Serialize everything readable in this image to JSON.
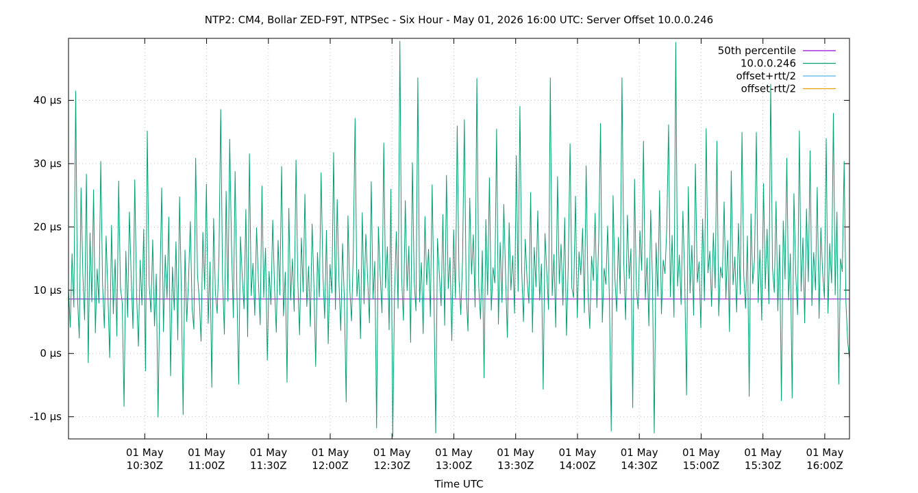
{
  "chart_data": {
    "type": "line",
    "title": "NTP2: CM4, Bollar ZED-F9T, NTPSec - Six Hour - May 01, 2026 16:00 UTC: Server Offset 10.0.0.246",
    "xlabel": "Time UTC",
    "ylabel": "",
    "x_range": [
      "2026-05-01T09:53Z",
      "2026-05-01T16:12Z"
    ],
    "ylim": [
      -13.5,
      49.8
    ],
    "y_unit": "µs",
    "grid": true,
    "legend_position": "top-right",
    "y_ticks": [
      {
        "value": -10,
        "label": "-10 µs"
      },
      {
        "value": 0,
        "label": "0 µs"
      },
      {
        "value": 10,
        "label": "10 µs"
      },
      {
        "value": 20,
        "label": "20 µs"
      },
      {
        "value": 30,
        "label": "30 µs"
      },
      {
        "value": 40,
        "label": "40 µs"
      }
    ],
    "x_ticks": [
      {
        "value": "2026-05-01T10:30Z",
        "date": "01 May",
        "time": "10:30Z"
      },
      {
        "value": "2026-05-01T11:00Z",
        "date": "01 May",
        "time": "11:00Z"
      },
      {
        "value": "2026-05-01T11:30Z",
        "date": "01 May",
        "time": "11:30Z"
      },
      {
        "value": "2026-05-01T12:00Z",
        "date": "01 May",
        "time": "12:00Z"
      },
      {
        "value": "2026-05-01T12:30Z",
        "date": "01 May",
        "time": "12:30Z"
      },
      {
        "value": "2026-05-01T13:00Z",
        "date": "01 May",
        "time": "13:00Z"
      },
      {
        "value": "2026-05-01T13:30Z",
        "date": "01 May",
        "time": "13:30Z"
      },
      {
        "value": "2026-05-01T14:00Z",
        "date": "01 May",
        "time": "14:00Z"
      },
      {
        "value": "2026-05-01T14:30Z",
        "date": "01 May",
        "time": "14:30Z"
      },
      {
        "value": "2026-05-01T15:00Z",
        "date": "01 May",
        "time": "15:00Z"
      },
      {
        "value": "2026-05-01T15:30Z",
        "date": "01 May",
        "time": "15:30Z"
      },
      {
        "value": "2026-05-01T16:00Z",
        "date": "01 May",
        "time": "16:00Z"
      }
    ],
    "series": [
      {
        "name": "50th percentile",
        "color": "#9400d3",
        "style": "horizontal",
        "value": 8.6
      },
      {
        "name": "10.0.0.246",
        "color": "#009e73",
        "style": "line",
        "x_start": "2026-05-01T09:53Z",
        "x_end": "2026-05-01T16:12Z",
        "interval_minutes": 0.5,
        "values": [
          10.2,
          4.1,
          15.8,
          7.3,
          41.5,
          9.0,
          2.4,
          26.2,
          12.6,
          5.3,
          28.4,
          -1.5,
          19.1,
          8.1,
          25.9,
          3.2,
          13.4,
          7.9,
          30.4,
          11.1,
          4.0,
          18.6,
          9.4,
          -0.7,
          20.3,
          6.2,
          14.9,
          2.7,
          27.3,
          10.5,
          8.0,
          -8.4,
          16.2,
          5.7,
          22.4,
          12.1,
          3.9,
          27.5,
          9.3,
          1.1,
          14.8,
          7.6,
          19.7,
          -2.8,
          35.2,
          11.0,
          6.5,
          18.0,
          4.3,
          12.6,
          -10.1,
          9.8,
          26.2,
          3.4,
          15.6,
          8.7,
          21.6,
          -3.6,
          13.7,
          6.8,
          17.7,
          2.1,
          24.8,
          9.9,
          -9.7,
          16.4,
          5.0,
          11.6,
          20.9,
          7.2,
          3.8,
          30.9,
          12.4,
          8.5,
          1.9,
          19.2,
          10.1,
          26.8,
          4.7,
          14.5,
          -5.4,
          21.4,
          9.6,
          6.3,
          15.3,
          38.6,
          11.8,
          3.0,
          25.7,
          8.2,
          33.9,
          17.2,
          5.6,
          28.8,
          10.0,
          -4.9,
          18.5,
          12.2,
          7.0,
          22.8,
          2.6,
          31.6,
          9.1,
          14.3,
          6.0,
          19.9,
          11.4,
          4.5,
          26.5,
          8.8,
          16.7,
          -1.1,
          13.0,
          7.7,
          21.1,
          10.6,
          3.3,
          17.9,
          9.2,
          29.6,
          5.9,
          12.9,
          -4.6,
          23.0,
          8.4,
          15.0,
          6.6,
          30.6,
          11.5,
          2.9,
          18.3,
          9.7,
          25.2,
          7.4,
          13.8,
          4.2,
          20.5,
          10.9,
          -2.1,
          16.0,
          8.9,
          28.6,
          12.7,
          5.5,
          19.5,
          1.5,
          14.1,
          9.5,
          31.8,
          6.9,
          24.4,
          11.2,
          3.6,
          17.4,
          8.3,
          -7.7,
          21.8,
          10.4,
          5.1,
          15.9,
          37.2,
          9.0,
          13.3,
          2.3,
          22.3,
          7.8,
          18.9,
          11.7,
          4.8,
          27.2,
          8.6,
          14.6,
          -11.8,
          20.1,
          12.3,
          6.4,
          33.3,
          10.3,
          16.9,
          3.7,
          26.0,
          -13.2,
          9.4,
          19.3,
          7.1,
          49.4,
          12.0,
          5.2,
          24.2,
          9.9,
          17.0,
          1.7,
          30.2,
          11.3,
          6.7,
          43.6,
          8.1,
          14.4,
          3.1,
          21.7,
          10.8,
          16.5,
          5.8,
          26.7,
          9.3,
          -12.6,
          18.2,
          12.8,
          7.5,
          22.0,
          4.4,
          28.2,
          10.2,
          15.2,
          2.0,
          19.6,
          8.7,
          36.0,
          11.9,
          6.1,
          14.7,
          37.0,
          9.6,
          3.5,
          24.6,
          12.5,
          18.8,
          7.3,
          43.5,
          10.7,
          5.4,
          16.3,
          -3.9,
          21.2,
          9.2,
          27.8,
          6.8,
          13.6,
          11.1,
          35.5,
          4.6,
          17.6,
          8.0,
          23.6,
          12.2,
          2.5,
          20.7,
          10.0,
          15.5,
          6.3,
          31.3,
          9.8,
          39.1,
          13.2,
          5.0,
          18.1,
          11.6,
          7.9,
          25.5,
          3.3,
          16.8,
          10.5,
          22.6,
          8.4,
          14.2,
          -5.7,
          19.0,
          12.9,
          6.9,
          43.6,
          9.1,
          15.7,
          4.1,
          28.0,
          11.0,
          17.3,
          7.6,
          21.5,
          2.8,
          13.9,
          33.2,
          10.4,
          8.8,
          24.9,
          5.6,
          16.1,
          12.4,
          19.8,
          6.4,
          29.7,
          9.7,
          3.9,
          15.4,
          11.5,
          22.2,
          7.2,
          17.8,
          36.4,
          4.9,
          13.5,
          10.9,
          20.2,
          8.2,
          -12.3,
          25.0,
          12.0,
          6.6,
          18.4,
          9.4,
          43.6,
          14.0,
          5.3,
          21.9,
          11.8,
          16.6,
          -8.6,
          27.6,
          10.1,
          7.0,
          19.4,
          13.1,
          33.6,
          8.5,
          15.1,
          4.3,
          22.7,
          11.4,
          -12.6,
          17.5,
          9.0,
          25.8,
          6.2,
          14.8,
          12.6,
          20.0,
          36.2,
          8.9,
          18.7,
          5.7,
          49.2,
          10.6,
          15.6,
          7.7,
          22.5,
          12.1,
          -6.6,
          26.4,
          9.5,
          17.1,
          6.0,
          30.0,
          11.2,
          14.5,
          4.0,
          21.3,
          8.3,
          35.6,
          12.7,
          16.2,
          7.4,
          19.1,
          10.3,
          33.6,
          5.9,
          13.7,
          11.9,
          24.0,
          8.6,
          17.9,
          3.4,
          28.9,
          10.8,
          15.3,
          6.5,
          20.6,
          9.3,
          35.0,
          12.3,
          7.1,
          18.6,
          -6.8,
          22.1,
          11.0,
          14.9,
          35.0,
          8.0,
          16.4,
          5.2,
          26.9,
          10.2,
          19.7,
          7.8,
          42.6,
          13.4,
          9.6,
          24.1,
          6.7,
          17.2,
          -7.5,
          21.0,
          11.7,
          30.9,
          8.4,
          15.8,
          -7.1,
          25.3,
          12.5,
          6.1,
          35.2,
          9.8,
          18.3,
          4.8,
          22.9,
          11.3,
          32.1,
          7.5,
          16.0,
          10.0,
          26.3,
          5.5,
          19.9,
          12.8,
          8.7,
          34.0,
          6.3,
          17.4,
          11.1,
          38.0,
          9.2,
          22.4,
          -4.9,
          15.0,
          12.9,
          30.4,
          8.1,
          1.8,
          -0.8
        ]
      },
      {
        "name": "offset+rtt/2",
        "color": "#56b4e9",
        "style": "none"
      },
      {
        "name": "offset-rtt/2",
        "color": "#e69f00",
        "style": "none"
      }
    ]
  }
}
